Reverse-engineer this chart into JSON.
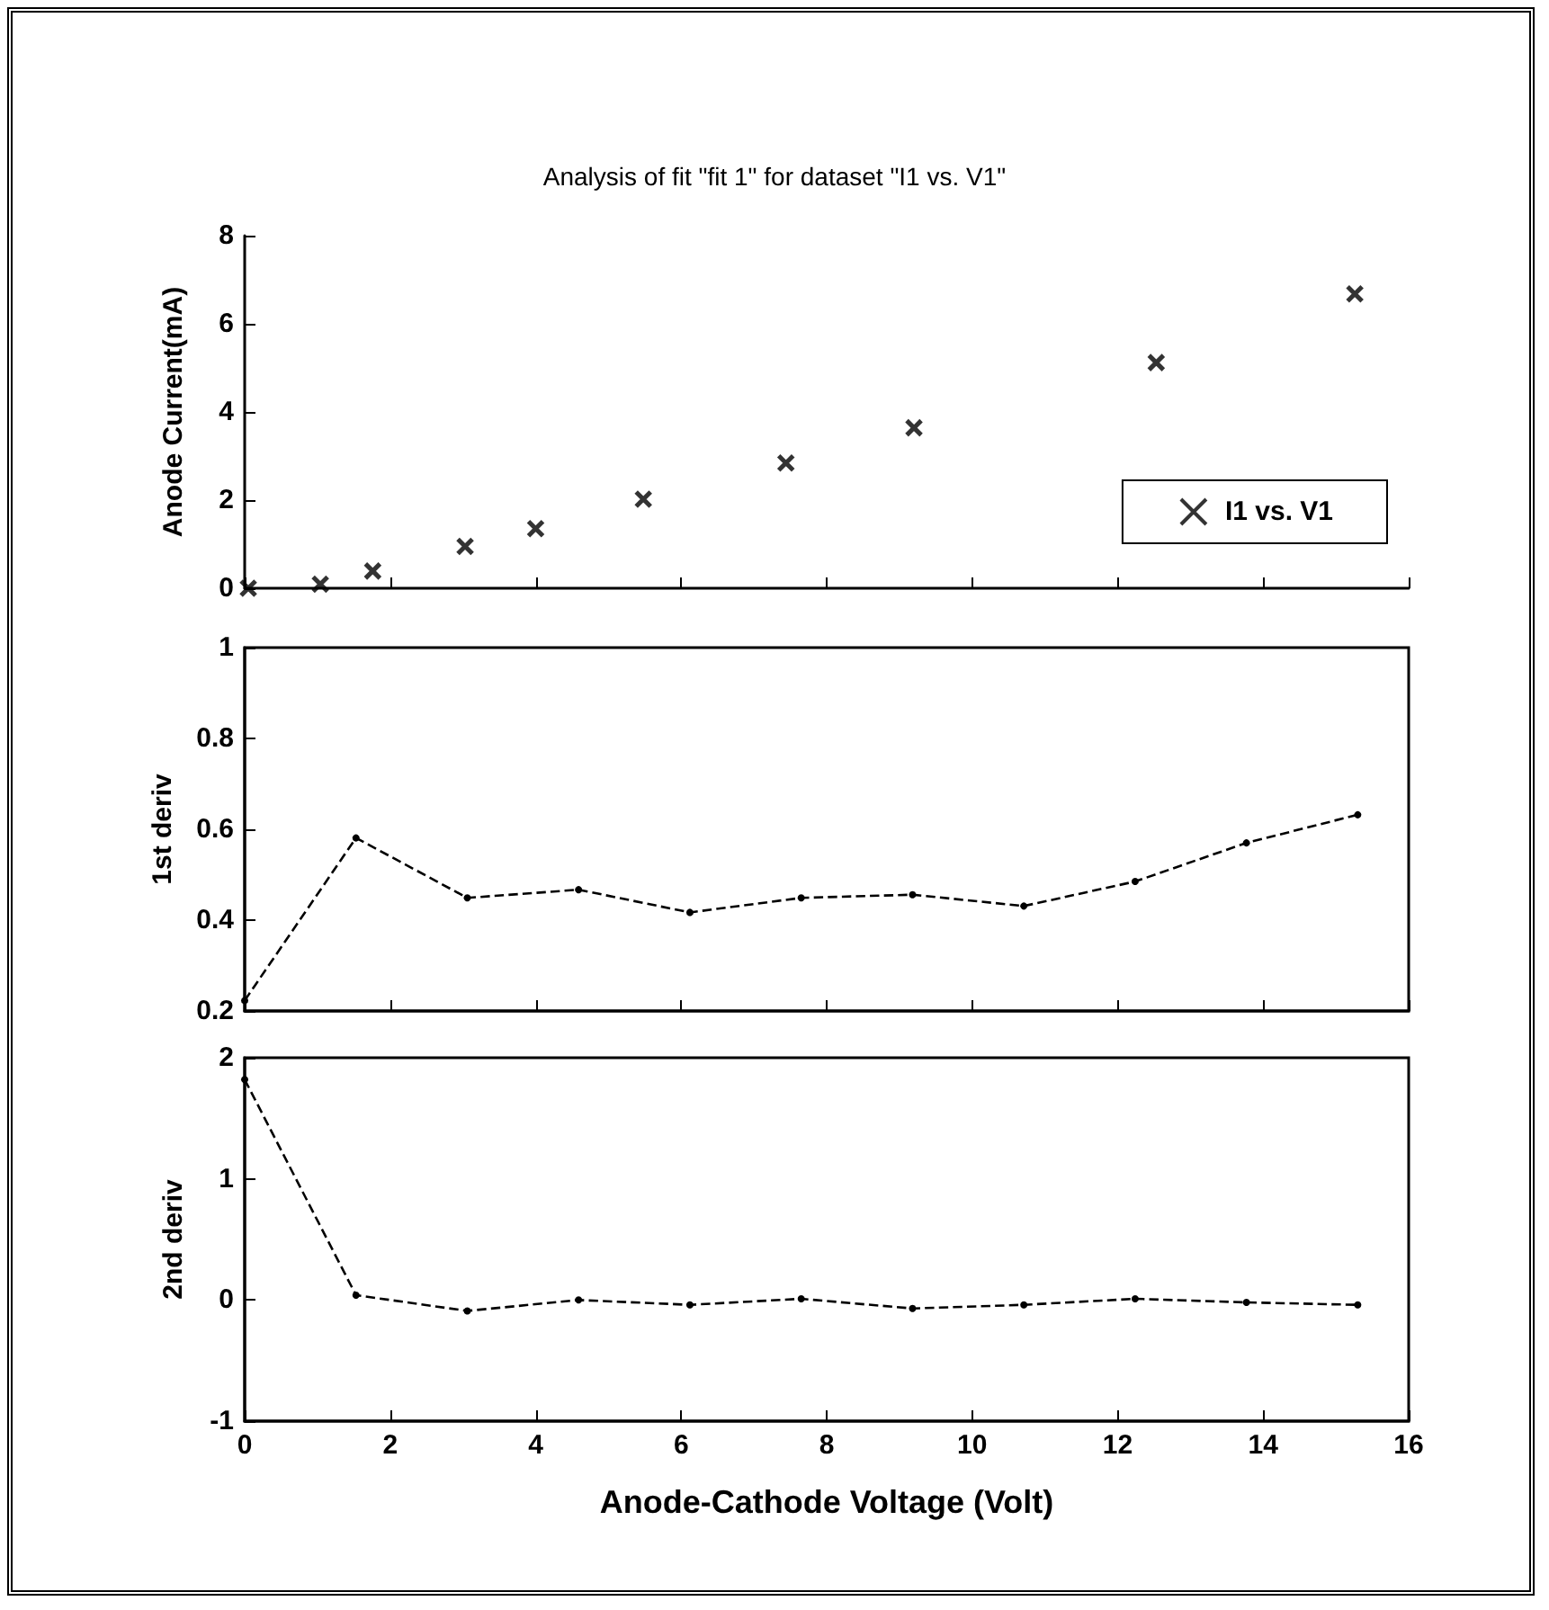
{
  "chart_data": [
    {
      "type": "scatter",
      "title": "Analysis of fit \"fit 1\" for dataset \"I1 vs. V1\"",
      "ylabel": "Anode Current(mA)",
      "x": [
        0.05,
        1.04,
        1.76,
        3.03,
        4.0,
        5.48,
        7.44,
        9.2,
        12.53,
        15.26
      ],
      "series": [
        {
          "name": "I1 vs. V1",
          "color": "#000000",
          "values": [
            0,
            0.09,
            0.39,
            0.95,
            1.35,
            2.02,
            2.84,
            3.64,
            5.12,
            6.68
          ]
        }
      ],
      "xlim": [
        0,
        16
      ],
      "xticks": [
        0,
        2,
        4,
        6,
        8,
        10,
        12,
        14,
        16
      ],
      "ylim": [
        0,
        8
      ],
      "yticks": [
        0,
        2,
        4,
        6,
        8
      ],
      "marker": "cross",
      "legend": "bottom right",
      "tick_labels": "y"
    },
    {
      "type": "line",
      "ylabel": "1st deriv",
      "x": [
        0,
        1.53,
        3.06,
        4.59,
        6.12,
        7.65,
        9.18,
        10.71,
        12.24,
        13.77,
        15.3
      ],
      "series": [
        {
          "color": "#000000",
          "values": [
            0.223,
            0.581,
            0.449,
            0.467,
            0.417,
            0.449,
            0.456,
            0.431,
            0.485,
            0.57,
            0.632
          ]
        }
      ],
      "xlim": [
        0,
        16
      ],
      "xticks": [
        0,
        2,
        4,
        6,
        8,
        10,
        12,
        14,
        16
      ],
      "ylim": [
        0.2,
        1
      ],
      "yticks": [
        0.2,
        0.4,
        0.6,
        0.8,
        1
      ],
      "marker": "circle",
      "line_style": "dashed",
      "tick_labels": "y"
    },
    {
      "type": "line",
      "ylabel": "2nd deriv",
      "xlabel": "Anode-Cathode Voltage (Volt)",
      "x": [
        0,
        1.53,
        3.06,
        4.59,
        6.12,
        7.65,
        9.18,
        10.71,
        12.24,
        13.77,
        15.3
      ],
      "series": [
        {
          "color": "#000000",
          "values": [
            1.82,
            0.04,
            -0.09,
            0,
            -0.04,
            0.01,
            -0.07,
            -0.04,
            0.01,
            -0.02,
            -0.04
          ]
        }
      ],
      "xlim": [
        0,
        16
      ],
      "xticks": [
        0,
        2,
        4,
        6,
        8,
        10,
        12,
        14,
        16
      ],
      "ylim": [
        -1,
        2
      ],
      "yticks": [
        -1,
        0,
        1,
        2
      ],
      "marker": "circle",
      "line_style": "dashed"
    }
  ]
}
